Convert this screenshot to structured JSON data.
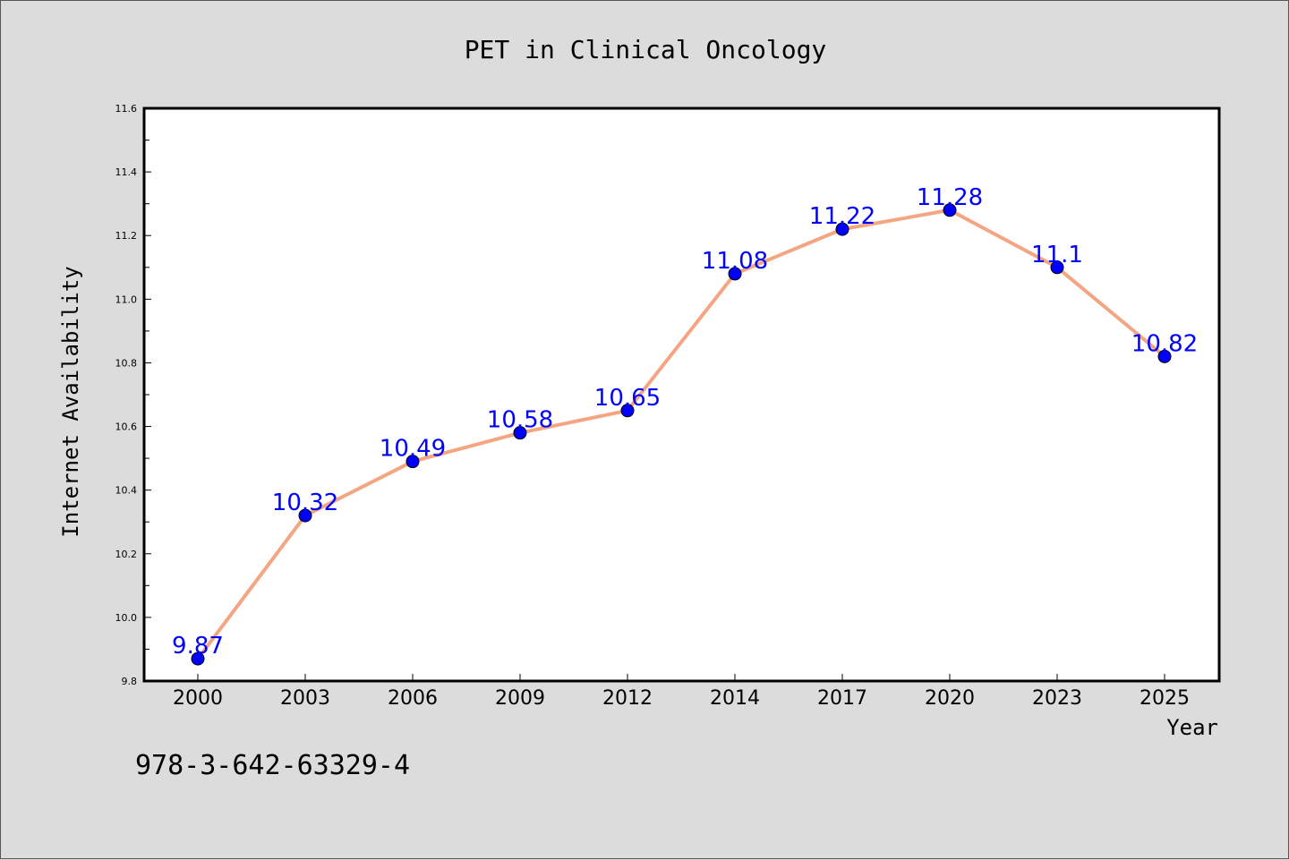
{
  "footer_text": "978-3-642-63329-4",
  "chart_data": {
    "type": "line",
    "title": "PET in Clinical Oncology",
    "xlabel": "Year",
    "ylabel": "Internet Availability",
    "categories": [
      "2000",
      "2003",
      "2006",
      "2009",
      "2012",
      "2014",
      "2017",
      "2020",
      "2023",
      "2025"
    ],
    "series": [
      {
        "values": [
          9.87,
          10.32,
          10.49,
          10.58,
          10.65,
          11.08,
          11.22,
          11.28,
          11.1,
          10.82
        ],
        "data_labels": [
          "9.87",
          "10.32",
          "10.49",
          "10.58",
          "10.65",
          "11.08",
          "11.22",
          "11.28",
          "11.1",
          "10.82"
        ],
        "line_color": "#f4a582",
        "marker_color": "#0000ff",
        "label_color": "#0000ff"
      }
    ],
    "ylim": [
      9.8,
      11.6
    ],
    "yticks": [
      "9.8",
      "10.0",
      "10.2",
      "10.4",
      "10.6",
      "10.8",
      "11.0",
      "11.2",
      "11.4",
      "11.6"
    ],
    "grid": false,
    "legend": "none"
  }
}
